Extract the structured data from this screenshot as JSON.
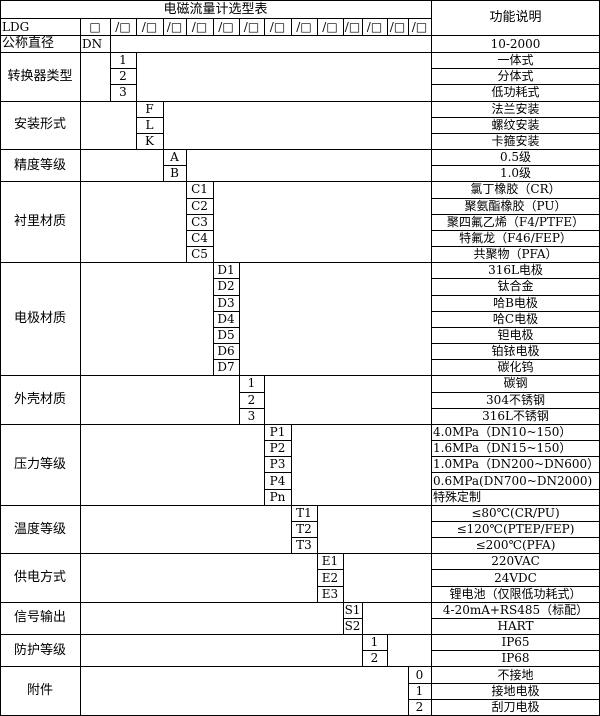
{
  "title": "电磁流量计选型表",
  "function_header": "功能说明",
  "model_row": {
    "prefix": "LDG",
    "first_box": "□",
    "slot_boxes": [
      "/□",
      "/□",
      "/□",
      "/□",
      "/□",
      "/□",
      "/□",
      "/□",
      "/□",
      "/□",
      "/□",
      "/□",
      "/□"
    ]
  },
  "diameter_row": {
    "label": "公称直径",
    "code": "DN",
    "function": "10-2000"
  },
  "groups": [
    {
      "label": "转换器类型",
      "col": 0,
      "codes": [
        "1",
        "2",
        "3"
      ],
      "functions": [
        "一体式",
        "分体式",
        "低功耗式"
      ]
    },
    {
      "label": "安装形式",
      "col": 1,
      "codes": [
        "F",
        "L",
        "K"
      ],
      "functions": [
        "法兰安装",
        "螺纹安装",
        "卡箍安装"
      ]
    },
    {
      "label": "精度等级",
      "col": 2,
      "codes": [
        "A",
        "B"
      ],
      "functions": [
        "0.5级",
        "1.0级"
      ]
    },
    {
      "label": "衬里材质",
      "col": 3,
      "codes": [
        "C1",
        "C2",
        "C3",
        "C4",
        "C5"
      ],
      "functions": [
        "氯丁橡胶（CR）",
        "聚氨酯橡胶（PU）",
        "聚四氟乙烯（F4/PTFE）",
        "特氟龙（F46/FEP）",
        "共聚物（PFA）"
      ]
    },
    {
      "label": "电极材质",
      "col": 4,
      "codes": [
        "D1",
        "D2",
        "D3",
        "D4",
        "D5",
        "D6",
        "D7"
      ],
      "functions": [
        "316L电极",
        "钛合金",
        "哈B电极",
        "哈C电极",
        "钽电极",
        "铂铱电极",
        "碳化钨"
      ]
    },
    {
      "label": "外壳材质",
      "col": 5,
      "codes": [
        "1",
        "2",
        "3"
      ],
      "functions": [
        "碳钢",
        "304不锈钢",
        "316L不锈钢"
      ]
    },
    {
      "label": "压力等级",
      "col": 6,
      "codes": [
        "P1",
        "P2",
        "P3",
        "P4",
        "Pn"
      ],
      "functions": [
        "4.0MPa（DN10~150）",
        "1.6MPa（DN15~150）",
        "1.0MPa（DN200~DN600）",
        "0.6MPa(DN700~DN2000)",
        "特殊定制"
      ],
      "left": true
    },
    {
      "label": "温度等级",
      "col": 7,
      "codes": [
        "T1",
        "T2",
        "T3"
      ],
      "functions": [
        "≤80℃(CR/PU)",
        "≤120℃(PTEP/FEP)",
        "≤200℃(PFA)"
      ]
    },
    {
      "label": "供电方式",
      "col": 8,
      "codes": [
        "E1",
        "E2",
        "E3"
      ],
      "functions": [
        "220VAC",
        "24VDC",
        "锂电池（仅限低功耗式）"
      ]
    },
    {
      "label": "信号输出",
      "col": 9,
      "codes": [
        "S1",
        "S2"
      ],
      "functions": [
        "4-20mA+RS485（标配）",
        "HART"
      ]
    },
    {
      "label": "防护等级",
      "col": 10,
      "codes": [
        "1",
        "2"
      ],
      "functions": [
        "IP65",
        "IP68"
      ]
    },
    {
      "label": "附件",
      "col": 12,
      "codes": [
        "0",
        "1",
        "2"
      ],
      "functions": [
        "不接地",
        "接地电极",
        "刮刀电极"
      ]
    }
  ]
}
